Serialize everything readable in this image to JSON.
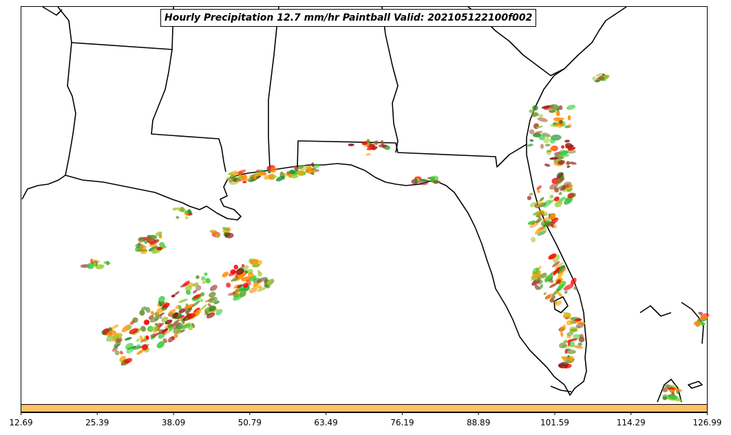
{
  "title": "Hourly Precipitation 12.7 mm/hr Paintball Valid: 202105122100f002",
  "colorbar": {
    "color": "#ffc266",
    "tick_labels": [
      "12.69",
      "25.39",
      "38.09",
      "50.79",
      "63.49",
      "76.19",
      "88.89",
      "101.59",
      "114.29",
      "126.99"
    ]
  },
  "paintball_colors": [
    "#ff0000",
    "#ff8c00",
    "#ffa500",
    "#8b1a1a",
    "#a0522d",
    "#9acd32",
    "#6b8e23",
    "#228b22",
    "#32cd32"
  ]
}
